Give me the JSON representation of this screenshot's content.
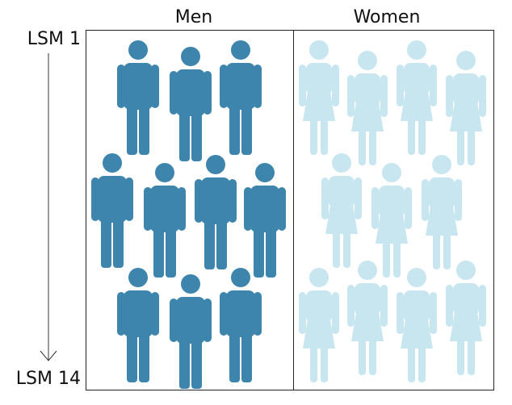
{
  "header": {
    "men": "Men",
    "women": "Women"
  },
  "axis": {
    "top": "LSM 1",
    "bottom": "LSM 14"
  }
}
